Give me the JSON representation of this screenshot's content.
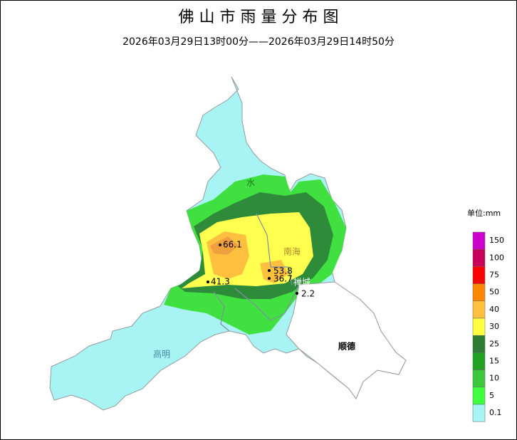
{
  "title": "佛 山 市 雨 量 分 布 图",
  "subtitle": "2026年03月29日13时00分——2026年03月29日14时50分",
  "legend": {
    "unit": "单位:mm",
    "levels": [
      {
        "label": 150,
        "color": "#cc00cc"
      },
      {
        "label": 100,
        "color": "#c8005a"
      },
      {
        "label": 75,
        "color": "#ff0000"
      },
      {
        "label": 50,
        "color": "#ff8800"
      },
      {
        "label": 40,
        "color": "#ffc040"
      },
      {
        "label": 30,
        "color": "#ffff40"
      },
      {
        "label": 25,
        "color": "#2e7d32"
      },
      {
        "label": 15,
        "color": "#22a022"
      },
      {
        "label": 10,
        "color": "#3cc83c"
      },
      {
        "label": 5,
        "color": "#40ff40"
      },
      {
        "label": 0.1,
        "color": "#a8f4f4"
      }
    ]
  },
  "districts": [
    {
      "name": "水"
    },
    {
      "name": "南海"
    },
    {
      "name": "禅城"
    },
    {
      "name": "高明"
    },
    {
      "name": "顺德"
    }
  ],
  "stations": [
    {
      "value": 66.1
    },
    {
      "value": 53.8
    },
    {
      "value": 36.7
    },
    {
      "value": 41.3
    },
    {
      "value": 2.2
    }
  ]
}
